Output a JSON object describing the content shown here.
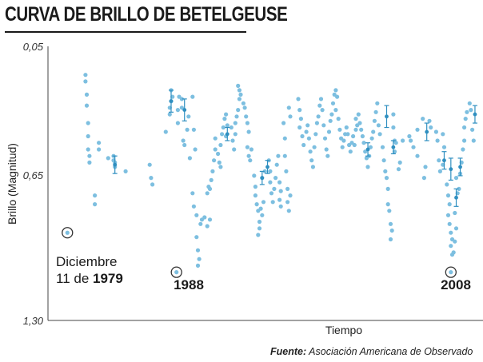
{
  "title": "CURVA DE BRILLO DE BETELGEUSE",
  "source": {
    "label": "Fuente:",
    "text": "Asociación Americana de Observado"
  },
  "colors": {
    "points": "#7dbfe0",
    "error_bars": "#2f8fc0",
    "axis": "#444444",
    "marker": "#333333"
  },
  "chart_data": {
    "type": "scatter",
    "title": "CURVA DE BRILLO DE BETELGEUSE",
    "xlabel": "Tiempo",
    "ylabel": "Brillo (Magnitud)",
    "y_axis_inverted": true,
    "ylim": [
      1.3,
      0.05
    ],
    "yticks": [
      "0,05",
      "0,65",
      "1,30"
    ],
    "xlim": [
      1978.5,
      2011.0
    ],
    "grid": false,
    "x_tick_labels_shown": false,
    "annotations": [
      {
        "label_line1": "Diciembre",
        "label_line2_prefix": "11 de ",
        "label_line2_bold": "1979",
        "x": 1979.95,
        "y": 0.9
      },
      {
        "label": "1988",
        "x": 1988.1,
        "y": 1.08
      },
      {
        "label": "2008",
        "x": 2008.6,
        "y": 1.08
      }
    ],
    "points": [
      [
        1981.3,
        0.18
      ],
      [
        1981.3,
        0.21
      ],
      [
        1981.4,
        0.27
      ],
      [
        1981.4,
        0.32
      ],
      [
        1981.5,
        0.4
      ],
      [
        1981.5,
        0.46
      ],
      [
        1981.5,
        0.52
      ],
      [
        1981.6,
        0.55
      ],
      [
        1981.6,
        0.58
      ],
      [
        1982.0,
        0.73
      ],
      [
        1982.0,
        0.77
      ],
      [
        1982.3,
        0.49
      ],
      [
        1982.3,
        0.52
      ],
      [
        1983.0,
        0.56
      ],
      [
        1983.4,
        0.55
      ],
      [
        1983.4,
        0.57
      ],
      [
        1983.5,
        0.58
      ],
      [
        1983.5,
        0.6
      ],
      [
        1984.3,
        0.62
      ],
      [
        1986.1,
        0.59
      ],
      [
        1986.2,
        0.65
      ],
      [
        1986.3,
        0.68
      ],
      [
        1987.3,
        0.44
      ],
      [
        1987.6,
        0.33
      ],
      [
        1987.6,
        0.36
      ],
      [
        1987.7,
        0.3
      ],
      [
        1987.7,
        0.25
      ],
      [
        1987.8,
        0.28
      ],
      [
        1988.2,
        0.4
      ],
      [
        1988.2,
        0.34
      ],
      [
        1988.3,
        0.28
      ],
      [
        1988.5,
        0.33
      ],
      [
        1988.5,
        0.29
      ],
      [
        1988.6,
        0.48
      ],
      [
        1988.7,
        0.5
      ],
      [
        1988.9,
        0.43
      ],
      [
        1989.0,
        0.37
      ],
      [
        1989.1,
        0.56
      ],
      [
        1989.3,
        0.28
      ],
      [
        1989.4,
        0.43
      ],
      [
        1989.5,
        0.52
      ],
      [
        1989.3,
        0.72
      ],
      [
        1989.4,
        0.78
      ],
      [
        1989.6,
        0.82
      ],
      [
        1989.6,
        0.92
      ],
      [
        1989.7,
        0.98
      ],
      [
        1989.8,
        1.02
      ],
      [
        1989.7,
        1.05
      ],
      [
        1989.9,
        0.86
      ],
      [
        1990.0,
        0.84
      ],
      [
        1990.2,
        0.83
      ],
      [
        1990.4,
        0.87
      ],
      [
        1990.6,
        0.84
      ],
      [
        1990.4,
        0.72
      ],
      [
        1990.5,
        0.69
      ],
      [
        1990.6,
        0.7
      ],
      [
        1990.7,
        0.66
      ],
      [
        1990.8,
        0.62
      ],
      [
        1990.9,
        0.57
      ],
      [
        1991.0,
        0.52
      ],
      [
        1991.0,
        0.47
      ],
      [
        1991.2,
        0.54
      ],
      [
        1991.3,
        0.58
      ],
      [
        1991.4,
        0.6
      ],
      [
        1991.4,
        0.5
      ],
      [
        1991.5,
        0.45
      ],
      [
        1991.6,
        0.42
      ],
      [
        1991.7,
        0.38
      ],
      [
        1991.8,
        0.36
      ],
      [
        1991.8,
        0.46
      ],
      [
        1991.9,
        0.41
      ],
      [
        1992.2,
        0.42
      ],
      [
        1992.3,
        0.48
      ],
      [
        1992.4,
        0.52
      ],
      [
        1992.5,
        0.45
      ],
      [
        1992.5,
        0.4
      ],
      [
        1992.6,
        0.37
      ],
      [
        1992.7,
        0.34
      ],
      [
        1992.8,
        0.29
      ],
      [
        1992.7,
        0.23
      ],
      [
        1992.8,
        0.25
      ],
      [
        1992.9,
        0.27
      ],
      [
        1993.1,
        0.31
      ],
      [
        1993.2,
        0.33
      ],
      [
        1993.3,
        0.37
      ],
      [
        1993.4,
        0.4
      ],
      [
        1993.5,
        0.44
      ],
      [
        1993.4,
        0.51
      ],
      [
        1993.5,
        0.55
      ],
      [
        1993.6,
        0.57
      ],
      [
        1993.7,
        0.52
      ],
      [
        1993.9,
        0.64
      ],
      [
        1994.0,
        0.69
      ],
      [
        1994.0,
        0.73
      ],
      [
        1994.1,
        0.77
      ],
      [
        1994.2,
        0.8
      ],
      [
        1994.3,
        0.85
      ],
      [
        1994.3,
        0.88
      ],
      [
        1994.2,
        0.91
      ],
      [
        1994.4,
        0.79
      ],
      [
        1994.5,
        0.82
      ],
      [
        1994.6,
        0.76
      ],
      [
        1994.5,
        0.65
      ],
      [
        1994.7,
        0.62
      ],
      [
        1995.0,
        0.57
      ],
      [
        1995.1,
        0.62
      ],
      [
        1995.1,
        0.67
      ],
      [
        1995.2,
        0.72
      ],
      [
        1995.3,
        0.76
      ],
      [
        1995.4,
        0.7
      ],
      [
        1995.5,
        0.65
      ],
      [
        1995.6,
        0.59
      ],
      [
        1995.7,
        0.55
      ],
      [
        1995.8,
        0.67
      ],
      [
        1995.9,
        0.71
      ],
      [
        1995.8,
        0.75
      ],
      [
        1995.9,
        0.78
      ],
      [
        1996.1,
        0.4
      ],
      [
        1996.2,
        0.47
      ],
      [
        1996.2,
        0.55
      ],
      [
        1996.3,
        0.62
      ],
      [
        1996.4,
        0.7
      ],
      [
        1996.4,
        0.76
      ],
      [
        1996.5,
        0.8
      ],
      [
        1996.6,
        0.73
      ],
      [
        1996.5,
        0.33
      ],
      [
        1996.6,
        0.37
      ],
      [
        1997.2,
        0.29
      ],
      [
        1997.3,
        0.34
      ],
      [
        1997.4,
        0.38
      ],
      [
        1997.3,
        0.42
      ],
      [
        1997.5,
        0.46
      ],
      [
        1997.6,
        0.5
      ],
      [
        1997.8,
        0.44
      ],
      [
        1997.9,
        0.41
      ],
      [
        1998.0,
        0.47
      ],
      [
        1998.1,
        0.53
      ],
      [
        1998.2,
        0.57
      ],
      [
        1998.3,
        0.6
      ],
      [
        1998.4,
        0.51
      ],
      [
        1998.5,
        0.45
      ],
      [
        1998.6,
        0.4
      ],
      [
        1998.7,
        0.37
      ],
      [
        1998.8,
        0.32
      ],
      [
        1998.9,
        0.29
      ],
      [
        1999.0,
        0.34
      ],
      [
        1999.1,
        0.41
      ],
      [
        1999.2,
        0.47
      ],
      [
        1999.3,
        0.52
      ],
      [
        1999.4,
        0.55
      ],
      [
        1999.5,
        0.44
      ],
      [
        1999.6,
        0.39
      ],
      [
        1999.7,
        0.36
      ],
      [
        1999.8,
        0.31
      ],
      [
        1999.9,
        0.27
      ],
      [
        2000.0,
        0.25
      ],
      [
        2000.1,
        0.28
      ],
      [
        2000.0,
        0.34
      ],
      [
        2000.2,
        0.38
      ],
      [
        2000.3,
        0.43
      ],
      [
        2000.4,
        0.47
      ],
      [
        2000.5,
        0.51
      ],
      [
        2000.6,
        0.48
      ],
      [
        2000.7,
        0.45
      ],
      [
        2000.8,
        0.42
      ],
      [
        2000.9,
        0.45
      ],
      [
        2001.0,
        0.5
      ],
      [
        2001.1,
        0.53
      ],
      [
        2001.2,
        0.49
      ],
      [
        2001.3,
        0.46
      ],
      [
        2001.4,
        0.5
      ],
      [
        2001.5,
        0.43
      ],
      [
        2001.6,
        0.41
      ],
      [
        2001.5,
        0.38
      ],
      [
        2001.7,
        0.36
      ],
      [
        2001.8,
        0.4
      ],
      [
        2001.9,
        0.43
      ],
      [
        2002.0,
        0.46
      ],
      [
        2002.1,
        0.49
      ],
      [
        2002.2,
        0.53
      ],
      [
        2002.3,
        0.56
      ],
      [
        2002.4,
        0.6
      ],
      [
        2002.5,
        0.55
      ],
      [
        2002.6,
        0.51
      ],
      [
        2002.7,
        0.47
      ],
      [
        2002.8,
        0.44
      ],
      [
        2002.9,
        0.39
      ],
      [
        2003.0,
        0.35
      ],
      [
        2003.1,
        0.31
      ],
      [
        2003.2,
        0.41
      ],
      [
        2003.3,
        0.45
      ],
      [
        2003.5,
        0.51
      ],
      [
        2003.6,
        0.57
      ],
      [
        2003.7,
        0.62
      ],
      [
        2003.8,
        0.65
      ],
      [
        2003.9,
        0.7
      ],
      [
        2003.9,
        0.77
      ],
      [
        2004.0,
        0.8
      ],
      [
        2004.1,
        0.86
      ],
      [
        2004.2,
        0.89
      ],
      [
        2004.1,
        0.93
      ],
      [
        2004.3,
        0.36
      ],
      [
        2004.3,
        0.42
      ],
      [
        2004.4,
        0.48
      ],
      [
        2004.4,
        0.53
      ],
      [
        2004.5,
        0.49
      ],
      [
        2004.7,
        0.61
      ],
      [
        2004.8,
        0.58
      ],
      [
        2005.0,
        0.48
      ],
      [
        2005.5,
        0.46
      ],
      [
        2005.6,
        0.48
      ],
      [
        2005.8,
        0.51
      ],
      [
        2006.1,
        0.55
      ],
      [
        2006.1,
        0.43
      ],
      [
        2006.6,
        0.65
      ],
      [
        2006.7,
        0.6
      ],
      [
        2006.5,
        0.38
      ],
      [
        2007.0,
        0.39
      ],
      [
        2007.1,
        0.42
      ],
      [
        2007.5,
        0.44
      ],
      [
        2007.6,
        0.48
      ],
      [
        2007.7,
        0.57
      ],
      [
        2007.8,
        0.62
      ],
      [
        2008.0,
        0.59
      ],
      [
        2008.1,
        0.51
      ],
      [
        2008.0,
        0.45
      ],
      [
        2008.3,
        0.68
      ],
      [
        2008.4,
        0.73
      ],
      [
        2008.5,
        0.77
      ],
      [
        2008.4,
        0.82
      ],
      [
        2008.5,
        0.86
      ],
      [
        2008.6,
        0.9
      ],
      [
        2008.7,
        0.93
      ],
      [
        2008.6,
        0.96
      ],
      [
        2008.8,
        0.99
      ],
      [
        2008.7,
        1.0
      ],
      [
        2008.9,
        0.94
      ],
      [
        2009.0,
        0.88
      ],
      [
        2008.9,
        0.81
      ],
      [
        2009.1,
        0.72
      ],
      [
        2009.0,
        0.65
      ],
      [
        2009.2,
        0.7
      ],
      [
        2009.3,
        0.63
      ],
      [
        2009.4,
        0.58
      ],
      [
        2009.5,
        0.52
      ],
      [
        2009.6,
        0.48
      ],
      [
        2009.6,
        0.42
      ],
      [
        2009.7,
        0.38
      ],
      [
        2009.8,
        0.35
      ],
      [
        2010.0,
        0.31
      ],
      [
        2010.1,
        0.34
      ],
      [
        2010.2,
        0.43
      ],
      [
        2010.3,
        0.48
      ]
    ],
    "error_bars": [
      [
        1983.5,
        0.59,
        0.04
      ],
      [
        1987.7,
        0.3,
        0.05
      ],
      [
        1988.7,
        0.34,
        0.05
      ],
      [
        1991.9,
        0.45,
        0.03
      ],
      [
        1994.5,
        0.65,
        0.03
      ],
      [
        1994.9,
        0.6,
        0.03
      ],
      [
        2002.4,
        0.52,
        0.03
      ],
      [
        2003.8,
        0.37,
        0.05
      ],
      [
        2004.3,
        0.51,
        0.03
      ],
      [
        2006.8,
        0.44,
        0.04
      ],
      [
        2008.1,
        0.57,
        0.04
      ],
      [
        2008.6,
        0.61,
        0.05
      ],
      [
        2009.0,
        0.74,
        0.04
      ],
      [
        2009.3,
        0.6,
        0.04
      ],
      [
        2010.4,
        0.36,
        0.04
      ]
    ]
  }
}
